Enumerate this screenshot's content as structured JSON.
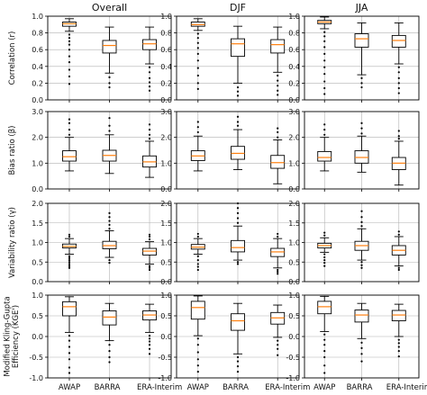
{
  "chart_data": {
    "type": "boxplot",
    "columns": [
      "Overall",
      "DJF",
      "JJA"
    ],
    "categories": [
      "AWAP",
      "BARRA",
      "ERA-Interim"
    ],
    "grid": true,
    "colors": {
      "box": "#000000",
      "median": "#ff7f0e",
      "grid": "#b0b0b0"
    },
    "rows": [
      {
        "ylabel": "Correlation (r)",
        "ylim": [
          0,
          1.0
        ],
        "yticks": [
          "0.0",
          "0.2",
          "0.4",
          "0.6",
          "0.8",
          "1.0"
        ],
        "tickvals": [
          0,
          0.2,
          0.4,
          0.6,
          0.8,
          1.0
        ],
        "panels": [
          [
            {
              "wlo": 0.82,
              "q1": 0.88,
              "med": 0.91,
              "q3": 0.93,
              "whi": 0.97,
              "out": [
                0.78,
                0.74,
                0.7,
                0.66,
                0.6,
                0.52,
                0.45,
                0.36,
                0.28,
                0.19
              ]
            },
            {
              "wlo": 0.32,
              "q1": 0.56,
              "med": 0.65,
              "q3": 0.71,
              "whi": 0.87,
              "out": [
                0.27,
                0.2,
                0.15
              ]
            },
            {
              "wlo": 0.43,
              "q1": 0.6,
              "med": 0.67,
              "q3": 0.72,
              "whi": 0.87,
              "out": [
                0.39,
                0.33,
                0.26,
                0.21,
                0.16,
                0.11
              ]
            }
          ],
          [
            {
              "wlo": 0.83,
              "q1": 0.88,
              "med": 0.9,
              "q3": 0.93,
              "whi": 0.97,
              "out": [
                0.79,
                0.74,
                0.68,
                0.62,
                0.55,
                0.47,
                0.38,
                0.29,
                0.2,
                0.13
              ]
            },
            {
              "wlo": 0.2,
              "q1": 0.52,
              "med": 0.67,
              "q3": 0.73,
              "whi": 0.88,
              "out": [
                0.15,
                0.1,
                0.05
              ]
            },
            {
              "wlo": 0.33,
              "q1": 0.56,
              "med": 0.66,
              "q3": 0.72,
              "whi": 0.87,
              "out": [
                0.29,
                0.23,
                0.17,
                0.11,
                0.06
              ]
            }
          ],
          [
            {
              "wlo": 0.85,
              "q1": 0.91,
              "med": 0.93,
              "q3": 0.95,
              "whi": 0.99,
              "out": [
                0.81,
                0.76,
                0.7,
                0.63,
                0.55,
                0.47,
                0.39,
                0.31,
                0.22,
                0.14,
                0.07
              ]
            },
            {
              "wlo": 0.3,
              "q1": 0.63,
              "med": 0.73,
              "q3": 0.79,
              "whi": 0.92,
              "out": [
                0.26,
                0.2,
                0.15
              ]
            },
            {
              "wlo": 0.43,
              "q1": 0.63,
              "med": 0.71,
              "q3": 0.77,
              "whi": 0.92,
              "out": [
                0.39,
                0.33,
                0.26,
                0.2,
                0.14,
                0.08
              ]
            }
          ]
        ]
      },
      {
        "ylabel": "Bias ratio (β)",
        "ylim": [
          0,
          3.0
        ],
        "yticks": [
          "0.0",
          "1.0",
          "2.0",
          "3.0"
        ],
        "tickvals": [
          0,
          1.0,
          2.0,
          3.0
        ],
        "panels": [
          [
            {
              "wlo": 0.7,
              "q1": 1.08,
              "med": 1.25,
              "q3": 1.48,
              "whi": 2.0,
              "out": [
                2.1,
                2.3,
                2.55,
                2.7
              ]
            },
            {
              "wlo": 0.6,
              "q1": 1.08,
              "med": 1.3,
              "q3": 1.5,
              "whi": 2.1,
              "out": [
                2.25,
                2.45,
                2.75
              ]
            },
            {
              "wlo": 0.45,
              "q1": 0.85,
              "med": 1.05,
              "q3": 1.28,
              "whi": 1.85,
              "out": [
                1.95,
                2.1,
                2.3,
                2.5
              ]
            }
          ],
          [
            {
              "wlo": 0.7,
              "q1": 1.1,
              "med": 1.28,
              "q3": 1.48,
              "whi": 2.05,
              "out": [
                2.2,
                2.4,
                2.6
              ]
            },
            {
              "wlo": 0.75,
              "q1": 1.15,
              "med": 1.38,
              "q3": 1.65,
              "whi": 2.3,
              "out": [
                2.45,
                2.6,
                2.8
              ]
            },
            {
              "wlo": 0.2,
              "q1": 0.8,
              "med": 1.02,
              "q3": 1.3,
              "whi": 1.9,
              "out": [
                2.0,
                2.2,
                2.35
              ]
            }
          ],
          [
            {
              "wlo": 0.7,
              "q1": 1.08,
              "med": 1.22,
              "q3": 1.45,
              "whi": 2.0,
              "out": [
                2.1,
                2.3,
                2.5
              ]
            },
            {
              "wlo": 0.65,
              "q1": 1.0,
              "med": 1.22,
              "q3": 1.48,
              "whi": 2.05,
              "out": [
                2.15,
                2.35,
                2.55
              ]
            },
            {
              "wlo": 0.15,
              "q1": 0.75,
              "med": 1.0,
              "q3": 1.22,
              "whi": 1.85,
              "out": [
                1.95,
                2.05,
                2.25
              ]
            }
          ]
        ]
      },
      {
        "ylabel": "Variability ratio (γ)",
        "ylim": [
          0,
          2.0
        ],
        "yticks": [
          "0.0",
          "0.5",
          "1.0",
          "1.5",
          "2.0"
        ],
        "tickvals": [
          0,
          0.5,
          1.0,
          1.5,
          2.0
        ],
        "panels": [
          [
            {
              "wlo": 0.7,
              "q1": 0.86,
              "med": 0.9,
              "q3": 0.96,
              "whi": 1.1,
              "out": [
                0.65,
                0.6,
                0.55,
                0.5,
                0.45,
                0.4,
                0.35,
                1.15,
                1.2
              ]
            },
            {
              "wlo": 0.62,
              "q1": 0.84,
              "med": 0.92,
              "q3": 1.03,
              "whi": 1.3,
              "out": [
                0.55,
                0.48,
                1.35,
                1.45,
                1.55,
                1.65,
                1.75
              ]
            },
            {
              "wlo": 0.45,
              "q1": 0.68,
              "med": 0.78,
              "q3": 0.85,
              "whi": 1.02,
              "out": [
                0.4,
                0.35,
                0.3,
                1.08,
                1.15,
                1.2
              ]
            }
          ],
          [
            {
              "wlo": 0.7,
              "q1": 0.83,
              "med": 0.88,
              "q3": 0.95,
              "whi": 1.1,
              "out": [
                0.65,
                0.55,
                0.45,
                0.38,
                0.3,
                1.15,
                1.22
              ]
            },
            {
              "wlo": 0.55,
              "q1": 0.76,
              "med": 0.87,
              "q3": 1.05,
              "whi": 1.42,
              "out": [
                0.5,
                0.45,
                1.5,
                1.62,
                1.75,
                1.88,
                2.0
              ]
            },
            {
              "wlo": 0.35,
              "q1": 0.64,
              "med": 0.76,
              "q3": 0.85,
              "whi": 1.1,
              "out": [
                0.3,
                0.25,
                0.2,
                1.15,
                1.22
              ]
            }
          ],
          [
            {
              "wlo": 0.75,
              "q1": 0.86,
              "med": 0.92,
              "q3": 0.98,
              "whi": 1.12,
              "out": [
                0.7,
                0.62,
                0.55,
                0.48,
                0.4,
                1.18,
                1.25
              ]
            },
            {
              "wlo": 0.55,
              "q1": 0.8,
              "med": 0.92,
              "q3": 1.03,
              "whi": 1.35,
              "out": [
                0.5,
                0.42,
                0.35,
                1.42,
                1.52,
                1.65,
                1.8
              ]
            },
            {
              "wlo": 0.4,
              "q1": 0.68,
              "med": 0.8,
              "q3": 0.92,
              "whi": 1.15,
              "out": [
                0.35,
                0.3,
                1.2,
                1.28
              ]
            }
          ]
        ]
      },
      {
        "ylabel": "Modified Kling-Gupta Efficiency (KGE')",
        "ylim": [
          -1.0,
          1.0
        ],
        "yticks": [
          "-1.0",
          "-0.5",
          "0.0",
          "0.5",
          "1.0"
        ],
        "tickvals": [
          -1.0,
          -0.5,
          0,
          0.5,
          1.0
        ],
        "panels": [
          [
            {
              "wlo": 0.1,
              "q1": 0.5,
              "med": 0.72,
              "q3": 0.84,
              "whi": 0.96,
              "out": [
                0.02,
                -0.1,
                -0.25,
                -0.4,
                -0.55,
                -0.75,
                -0.88
              ]
            },
            {
              "wlo": -0.1,
              "q1": 0.28,
              "med": 0.47,
              "q3": 0.62,
              "whi": 0.8,
              "out": [
                -0.2,
                -0.35,
                -0.5,
                -0.62
              ]
            },
            {
              "wlo": 0.1,
              "q1": 0.4,
              "med": 0.52,
              "q3": 0.62,
              "whi": 0.78,
              "out": [
                0.02,
                -0.05,
                -0.12,
                -0.2,
                -0.3,
                -0.42
              ]
            }
          ],
          [
            {
              "wlo": 0.02,
              "q1": 0.42,
              "med": 0.7,
              "q3": 0.85,
              "whi": 0.98,
              "out": [
                -0.05,
                -0.2,
                -0.38,
                -0.55,
                -0.7,
                -0.85
              ]
            },
            {
              "wlo": -0.42,
              "q1": 0.15,
              "med": 0.38,
              "q3": 0.55,
              "whi": 0.8,
              "out": [
                -0.5,
                -0.6,
                -0.72,
                -0.85
              ]
            },
            {
              "wlo": -0.02,
              "q1": 0.3,
              "med": 0.45,
              "q3": 0.58,
              "whi": 0.76,
              "out": [
                -0.1,
                -0.2,
                -0.3,
                -0.45
              ]
            }
          ],
          [
            {
              "wlo": 0.12,
              "q1": 0.55,
              "med": 0.72,
              "q3": 0.85,
              "whi": 0.97,
              "out": [
                0.05,
                -0.08,
                -0.2,
                -0.35,
                -0.5,
                -0.7,
                -0.88
              ]
            },
            {
              "wlo": -0.05,
              "q1": 0.35,
              "med": 0.52,
              "q3": 0.64,
              "whi": 0.8,
              "out": [
                -0.15,
                -0.28,
                -0.42,
                -0.6
              ]
            },
            {
              "wlo": 0.0,
              "q1": 0.38,
              "med": 0.52,
              "q3": 0.63,
              "whi": 0.78,
              "out": [
                -0.08,
                -0.16,
                -0.25,
                -0.35,
                -0.48
              ]
            }
          ]
        ]
      }
    ]
  }
}
